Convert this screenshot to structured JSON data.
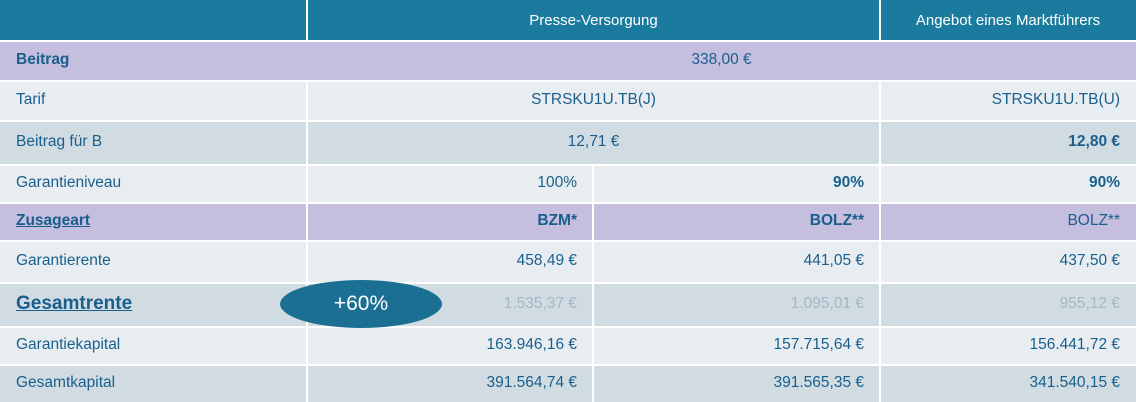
{
  "header": {
    "col_presse": "Presse-Versorgung",
    "col_markt": "Angebot eines Marktführers"
  },
  "rows": {
    "beitrag": {
      "label": "Beitrag",
      "value": "338,00 €"
    },
    "tarif": {
      "label": "Tarif",
      "presse": "STRSKU1U.TB(J)",
      "markt": "STRSKU1U.TB(U)"
    },
    "beitrag_b": {
      "label": "Beitrag für B",
      "presse": "12,71 €",
      "markt": "12,80 €"
    },
    "garantieniveau": {
      "label": "Garantieniveau",
      "p1": "100%",
      "p2": "90%",
      "markt": "90%"
    },
    "zusageart": {
      "label": "Zusageart",
      "p1": "BZM*",
      "p2": "BOLZ**",
      "markt": "BOLZ**"
    },
    "garantierente": {
      "label": "Garantierente",
      "p1": "458,49 €",
      "p2": "441,05 €",
      "markt": "437,50 €"
    },
    "gesamtrente": {
      "label": "Gesamtrente",
      "p1": "1.535,37 €",
      "p2": "1.095,01 €",
      "markt": "955,12 €"
    },
    "garantiekapital": {
      "label": "Garantiekapital",
      "p1": "163.946,16 €",
      "p2": "157.715,64 €",
      "markt": "156.441,72 €"
    },
    "gesamtkapital": {
      "label": "Gesamtkapital",
      "p1": "391.564,74 €",
      "p2": "391.565,35 €",
      "markt": "341.540,15 €"
    }
  },
  "badge": {
    "text": "+60%"
  },
  "colors": {
    "header": "#1b7b9e",
    "purple": "#c5bedf",
    "light": "#e8edf1",
    "gray": "#d0dbe2",
    "text": "#1a5f8c",
    "badge": "#1b6f93"
  }
}
